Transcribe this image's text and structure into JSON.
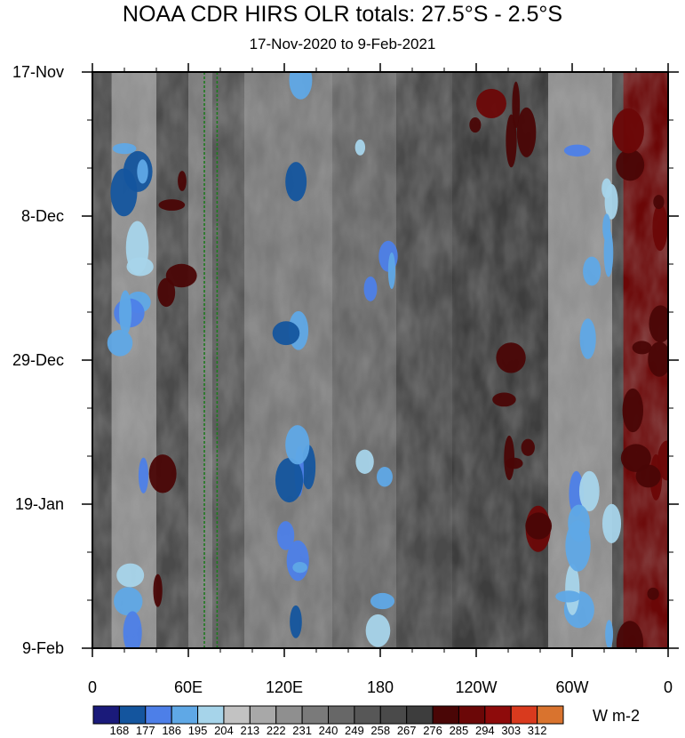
{
  "header": {
    "title": "NOAA CDR HIRS OLR totals: 27.5°S - 2.5°S",
    "subtitle": "17-Nov-2020 to 9-Feb-2021"
  },
  "colorbar": {
    "units": "W m-2",
    "levels": [
      168,
      177,
      186,
      195,
      204,
      213,
      222,
      231,
      240,
      249,
      258,
      267,
      276,
      285,
      294,
      303,
      312
    ],
    "colors": [
      "#1a1a7a",
      "#14559e",
      "#4d7fe8",
      "#5fa8e6",
      "#a6d4ea",
      "#c2c2c2",
      "#a8a8a8",
      "#8f8f8f",
      "#7a7a7a",
      "#676767",
      "#575757",
      "#4a4a4a",
      "#3d3d3d",
      "#4a0606",
      "#6b0707",
      "#8e0b0b",
      "#d93a1e",
      "#d9732e"
    ]
  },
  "chart_data": {
    "type": "heatmap",
    "title": "NOAA CDR HIRS OLR totals: 27.5°S - 2.5°S",
    "subtitle": "17-Nov-2020 to 9-Feb-2021",
    "xlabel": "",
    "ylabel": "",
    "x_ticks": [
      "0",
      "60E",
      "120E",
      "180",
      "120W",
      "60W",
      "0"
    ],
    "x_tick_values": [
      0,
      60,
      120,
      180,
      240,
      300,
      360
    ],
    "xlim": [
      0,
      360
    ],
    "y_ticks": [
      "17-Nov",
      "8-Dec",
      "29-Dec",
      "19-Jan",
      "9-Feb"
    ],
    "y_tick_values": [
      "2020-11-17",
      "2020-12-08",
      "2020-12-29",
      "2021-01-19",
      "2021-02-09"
    ],
    "ylim": [
      "2020-11-17",
      "2021-02-09"
    ],
    "value_units": "W m-2",
    "contour_levels": [
      168,
      177,
      186,
      195,
      204,
      213,
      222,
      231,
      240,
      249,
      258,
      267,
      276,
      285,
      294,
      303,
      312
    ],
    "reference_lines_lon": [
      70,
      78
    ],
    "bands": [
      {
        "lon": [
          0,
          12
        ],
        "olr": 258
      },
      {
        "lon": [
          12,
          40
        ],
        "olr": 222
      },
      {
        "lon": [
          40,
          60
        ],
        "olr": 258
      },
      {
        "lon": [
          60,
          75
        ],
        "olr": 231
      },
      {
        "lon": [
          75,
          95
        ],
        "olr": 249
      },
      {
        "lon": [
          95,
          150
        ],
        "olr": 231
      },
      {
        "lon": [
          150,
          190
        ],
        "olr": 240
      },
      {
        "lon": [
          190,
          225
        ],
        "olr": 258
      },
      {
        "lon": [
          225,
          285
        ],
        "olr": 267
      },
      {
        "lon": [
          285,
          325
        ],
        "olr": 222
      },
      {
        "lon": [
          325,
          332
        ],
        "olr": 258
      },
      {
        "lon": [
          332,
          360
        ],
        "olr": 285
      }
    ]
  }
}
